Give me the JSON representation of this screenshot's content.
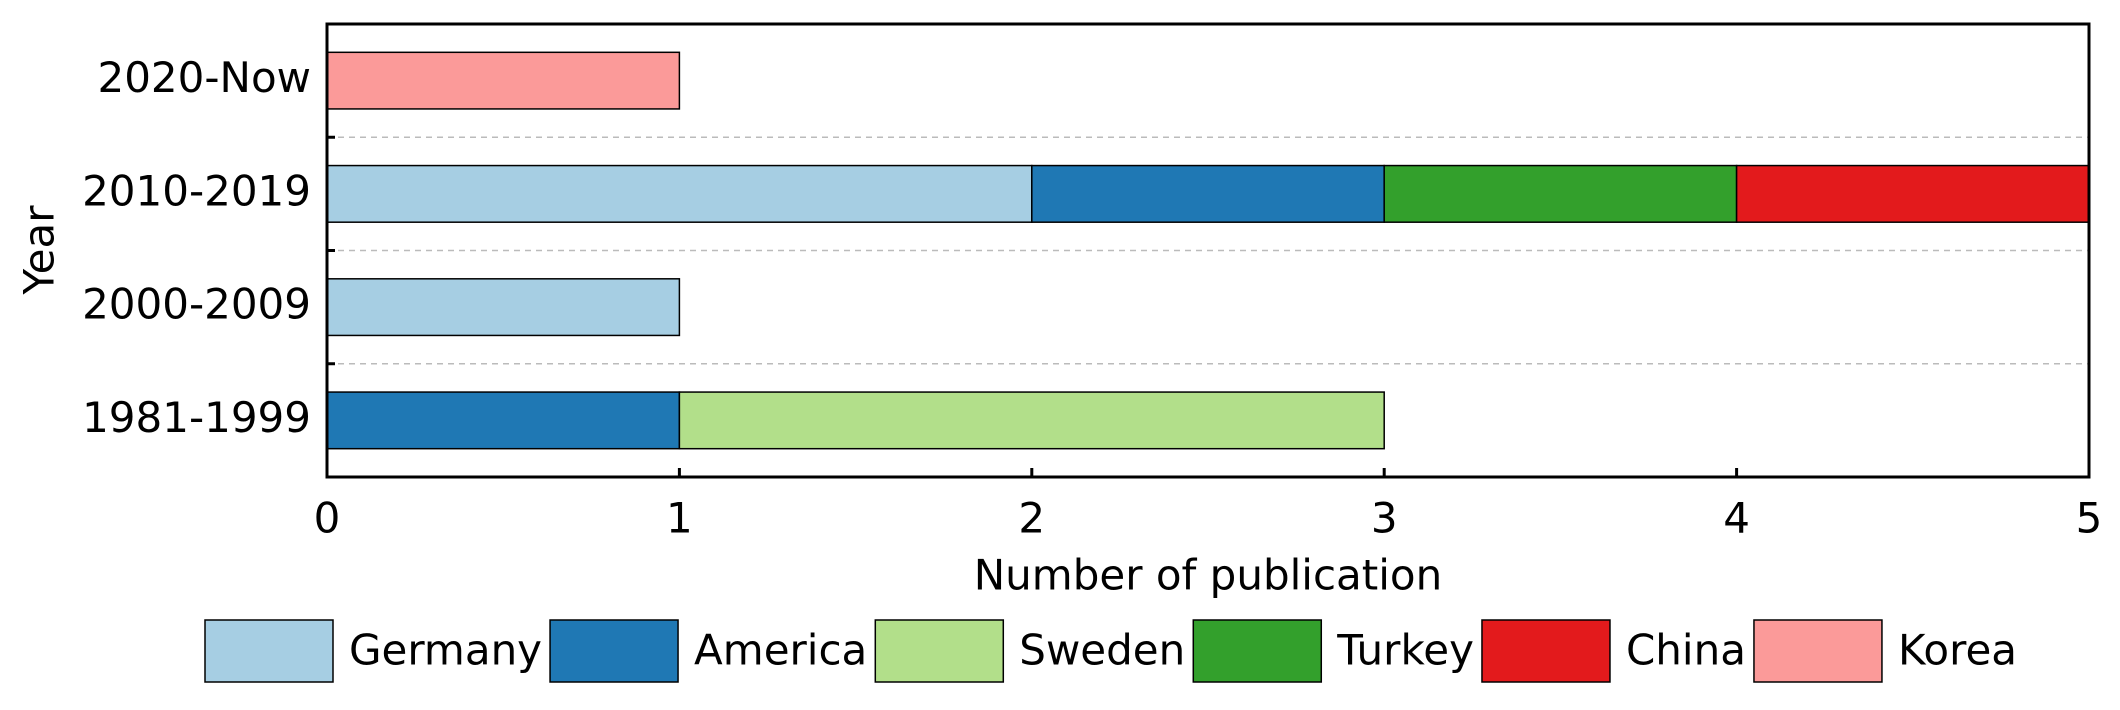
{
  "chart_data": {
    "type": "stacked-barh",
    "x_label": "Number of publication",
    "y_label": "Year",
    "categories": [
      "1981-1999",
      "2000-2009",
      "2010-2019",
      "2020-Now"
    ],
    "series": [
      {
        "name": "Germany",
        "color": "#a6cee3",
        "values": [
          0,
          1,
          2,
          0
        ]
      },
      {
        "name": "America",
        "color": "#1f78b4",
        "values": [
          1,
          0,
          1,
          0
        ]
      },
      {
        "name": "Sweden",
        "color": "#b2df8a",
        "values": [
          2,
          0,
          0,
          0
        ]
      },
      {
        "name": "Turkey",
        "color": "#33a02c",
        "values": [
          0,
          0,
          1,
          0
        ]
      },
      {
        "name": "China",
        "color": "#e31a1c",
        "values": [
          0,
          0,
          1,
          0
        ]
      },
      {
        "name": "Korea",
        "color": "#fb9a99",
        "values": [
          0,
          0,
          0,
          1
        ]
      }
    ],
    "xlim": [
      0,
      5
    ],
    "xticks": [
      0,
      1,
      2,
      3,
      4,
      5
    ],
    "legend": "bottom"
  }
}
